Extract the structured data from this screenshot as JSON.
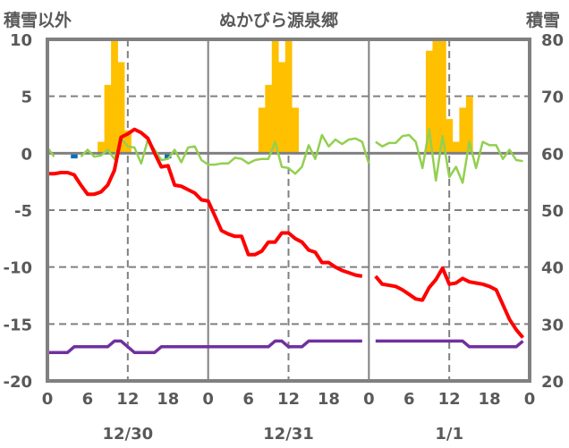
{
  "chart_data": {
    "type": "line",
    "title": "ぬかびら源泉郷",
    "left_axis_label": "積雪以外",
    "right_axis_label": "積雪",
    "ylim_left": [
      -20,
      10
    ],
    "ylim_right": [
      20,
      80
    ],
    "left_ticks": [
      "10",
      "5",
      "0",
      "-5",
      "-10",
      "-15",
      "-20"
    ],
    "right_ticks": [
      "80",
      "70",
      "60",
      "50",
      "40",
      "30",
      "20"
    ],
    "x_ticks": [
      "0",
      "6",
      "12",
      "18",
      "0",
      "6",
      "12",
      "18",
      "0",
      "6",
      "12",
      "18",
      "0"
    ],
    "days": [
      "12/30",
      "12/31",
      "1/1"
    ],
    "grid": true,
    "colors": {
      "bars": "#FFC000",
      "red": "#FF0000",
      "green": "#92D050",
      "purple": "#7030A0",
      "blue": "#0070C0",
      "axis": "#808080"
    },
    "bars": [
      {
        "day": 0,
        "hours": [
          8,
          9,
          10,
          11,
          12
        ],
        "values": [
          1,
          6,
          10,
          8,
          2
        ]
      },
      {
        "day": 1,
        "hours": [
          8,
          9,
          10,
          11,
          12,
          13
        ],
        "values": [
          4,
          6,
          10,
          8,
          10,
          4
        ]
      },
      {
        "day": 2,
        "hours": [
          9,
          10,
          11,
          12,
          13,
          14,
          15
        ],
        "values": [
          9,
          10,
          10,
          3,
          1,
          4,
          5
        ]
      }
    ],
    "blue_marks": [
      {
        "day": 0,
        "hour": 4,
        "value": -0.3
      },
      {
        "day": 0,
        "hour": 18,
        "value": -0.3
      }
    ],
    "series": [
      {
        "name": "red",
        "segments": [
          {
            "start_day": 0,
            "start_hour": 0,
            "values": [
              -1.8,
              -1.8,
              -1.7,
              -1.7,
              -1.9,
              -2.8,
              -3.6,
              -3.6,
              -3.4,
              -2.8,
              -1.5,
              1.4,
              1.7,
              2.1,
              1.8,
              1.3,
              0,
              -1.2,
              -1.1,
              -2.8,
              -2.9,
              -3.2,
              -3.5,
              -4.1,
              -4.2,
              -5.5,
              -6.8,
              -7.1,
              -7.3,
              -7.3,
              -8.9,
              -8.9,
              -8.6,
              -7.8,
              -7.8,
              -7.0,
              -7.0,
              -7.5,
              -7.8,
              -8.5,
              -8.7,
              -9.6,
              -9.6,
              -10.0,
              -10.3,
              -10.5,
              -10.7,
              -10.8
            ]
          },
          {
            "start_day": 2,
            "start_hour": 1,
            "values": [
              -10.8,
              -11.5,
              -11.6,
              -11.7,
              -12.0,
              -12.4,
              -12.8,
              -12.9,
              -11.8,
              -11.1,
              -10.1,
              -11.5,
              -11.4,
              -11.0,
              -11.3,
              -11.4,
              -11.5,
              -11.7,
              -12.0,
              -13.3,
              -14.6,
              -15.5,
              -16.2
            ]
          }
        ]
      },
      {
        "name": "green",
        "segments": [
          {
            "start_day": 0,
            "start_hour": 0,
            "values": [
              0.5,
              -0.3
            ]
          },
          {
            "start_day": 0,
            "start_hour": 5,
            "values": [
              -0.3,
              0.3,
              -0.3,
              -0.2,
              0.3,
              -0.5,
              1.3,
              0.6,
              0.5,
              -0.9,
              1.2,
              0.3,
              -0.6,
              -0.5,
              0.3,
              -0.8,
              0.5,
              0.6,
              -0.6,
              -1.0,
              -1.0,
              -0.9,
              -0.9,
              -0.4,
              -0.5,
              -0.9,
              -0.6,
              -0.5,
              -0.5,
              1.0,
              -1.2,
              -1.3,
              -1.8,
              -1.2,
              0.7,
              -0.5,
              1.6,
              0.6,
              1.2,
              0.8,
              1.2,
              1.3,
              1.0,
              -0.9
            ]
          },
          {
            "start_day": 2,
            "start_hour": 1,
            "values": [
              1.0,
              0.6,
              0.9,
              0.9,
              1.5,
              1.6,
              1.0,
              -1.3,
              2.1,
              -2.4,
              1.5,
              -2.1,
              -1.2,
              -2.6,
              1.0,
              -1.3,
              1.0,
              0.7,
              0.7,
              -0.5,
              0.3,
              -0.6,
              -0.7
            ]
          }
        ]
      },
      {
        "name": "purple",
        "segments": [
          {
            "start_day": 0,
            "start_hour": 0,
            "values": [
              -17.5,
              -17.5,
              -17.5,
              -17.5,
              -17,
              -17,
              -17,
              -17,
              -17,
              -17,
              -16.5,
              -16.5,
              -17,
              -17.5,
              -17.5,
              -17.5,
              -17.5,
              -17,
              -17,
              -17,
              -17,
              -17,
              -17,
              -17,
              -17,
              -17,
              -17,
              -17,
              -17,
              -17,
              -17,
              -17,
              -17,
              -17,
              -16.5,
              -16.5,
              -17,
              -17,
              -17,
              -16.5,
              -16.5,
              -16.5,
              -16.5,
              -16.5,
              -16.5,
              -16.5,
              -16.5,
              -16.5
            ]
          },
          {
            "start_day": 2,
            "start_hour": 1,
            "values": [
              -16.5,
              -16.5,
              -16.5,
              -16.5,
              -16.5,
              -16.5,
              -16.5,
              -16.5,
              -16.5,
              -16.5,
              -16.5,
              -16.5,
              -16.5,
              -16.5,
              -17,
              -17,
              -17,
              -17,
              -17,
              -17,
              -17,
              -17,
              -16.5
            ]
          }
        ]
      }
    ]
  }
}
